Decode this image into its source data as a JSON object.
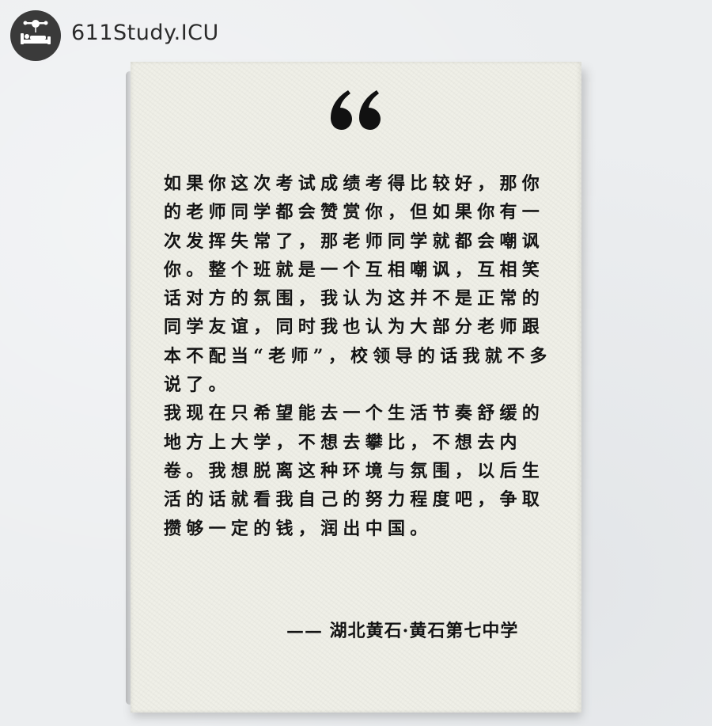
{
  "brand": {
    "name": "611Study.ICU"
  },
  "card": {
    "quote_mark": "“",
    "paragraphs": [
      "如果你这次考试成绩考得比较好，那你的老师同学都会赞赏你，但如果你有一次发挥失常了，那老师同学就都会嘲讽你。整个班就是一个互相嘲讽，互相笑话对方的氛围，我认为这并不是正常的同学友谊，同时我也认为大部分老师跟本不配当“老师”，校领导的话我就不多说了。",
      "我现在只希望能去一个生活节奏舒缓的地方上大学，不想去攀比，不想去内卷。我想脱离这种环境与氛围，以后生活的话就看我自己的努力程度吧，争取攒够一定的钱，润出中国。"
    ],
    "signature": "—— 湖北黄石·黄石第七中学"
  },
  "colors": {
    "background": "#eceef0",
    "paper": "#efefe7",
    "ink": "#141414",
    "logo": "#3a3a3a"
  },
  "icons": {
    "logo": "logo-icon",
    "quote": "quote-icon"
  }
}
